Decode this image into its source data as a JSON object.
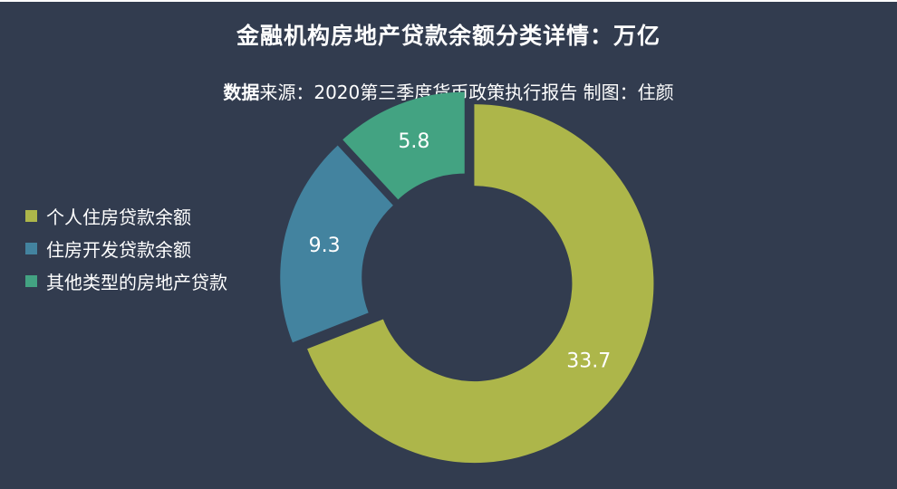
{
  "title": "金融机构房地产贷款余额分类详情：万亿",
  "subtitle": {
    "strong": "数据",
    "rest": "来源：2020第三季度货币政策执行报告 制图：住颜"
  },
  "chart_data": {
    "type": "pie",
    "variant": "donut",
    "categories": [
      "个人住房贷款余额",
      "住房开发贷款余额",
      "其他类型的房地产贷款"
    ],
    "values": [
      33.7,
      9.3,
      5.8
    ],
    "labels": [
      "33.7",
      "9.3",
      "5.8"
    ],
    "colors": [
      "#adb64a",
      "#43839f",
      "#43a382"
    ],
    "legend_position": "left"
  }
}
